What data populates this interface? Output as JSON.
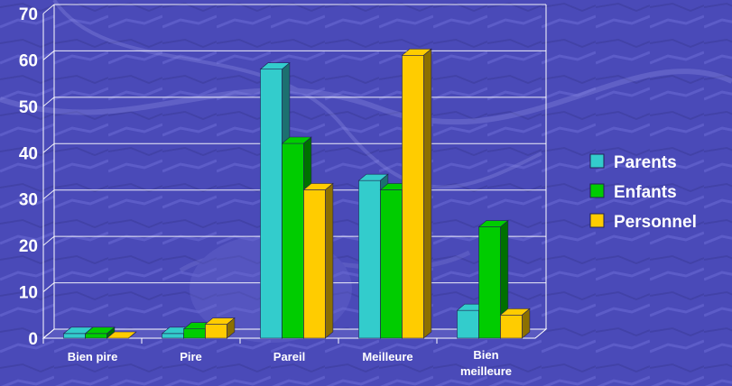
{
  "chart_data": {
    "type": "bar",
    "title": "",
    "xlabel": "",
    "ylabel": "",
    "categories": [
      [
        "Bien pire"
      ],
      [
        "Pire"
      ],
      [
        "Pareil"
      ],
      [
        "Meilleure"
      ],
      [
        "Bien",
        "meilleure"
      ]
    ],
    "series": [
      {
        "name": "Parents",
        "values": [
          1,
          1,
          58,
          34,
          6
        ],
        "color": "#33cccc"
      },
      {
        "name": "Enfants",
        "values": [
          1,
          2,
          42,
          32,
          24
        ],
        "color": "#00cc00"
      },
      {
        "name": "Personnel",
        "values": [
          0,
          3,
          32,
          61,
          5
        ],
        "color": "#ffcc00"
      }
    ],
    "yticks": [
      0,
      10,
      20,
      30,
      40,
      50,
      60,
      70
    ],
    "ylim": [
      0,
      70
    ],
    "grid": true,
    "legend_position": "right",
    "style": "3d-bar"
  },
  "colors": {
    "background": "#4a4ab8",
    "text": "#ffffff",
    "gridline": "#ffffff"
  }
}
